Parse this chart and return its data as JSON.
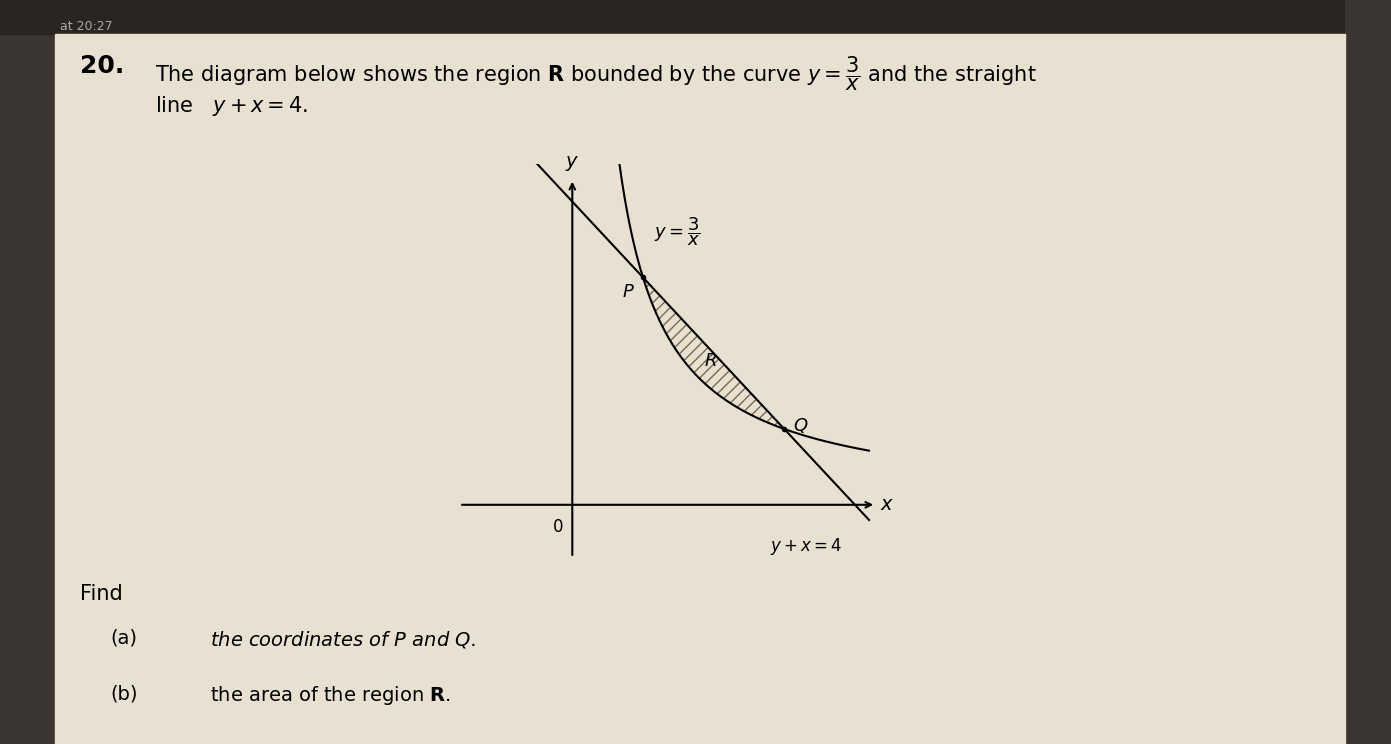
{
  "bg_color": "#d4c9b0",
  "paper_color": "#e8e0d0",
  "sidebar_color": "#3a3530",
  "top_bar_color": "#2a2520",
  "time_text": "at 20:27",
  "number": "20.",
  "line1": "The diagram below shows the region R bounded by the curve $y = \\dfrac{3}{x}$ and the straight",
  "line2": "line   $y+x=4$.",
  "find_text": "Find",
  "part_a_label": "(a)",
  "part_a_text": "the coordinates of $P$ and $Q$.",
  "part_b_label": "(b)",
  "part_b_text": "the area of the region R.",
  "curve_label": "$y = \\dfrac{3}{x}$",
  "line_label": "$y+x=4$",
  "region_label": "R",
  "point_P": "P",
  "point_Q": "Q",
  "origin_label": "0",
  "x_label": "x",
  "y_label": "y",
  "hatch_color": "#7a6a50"
}
